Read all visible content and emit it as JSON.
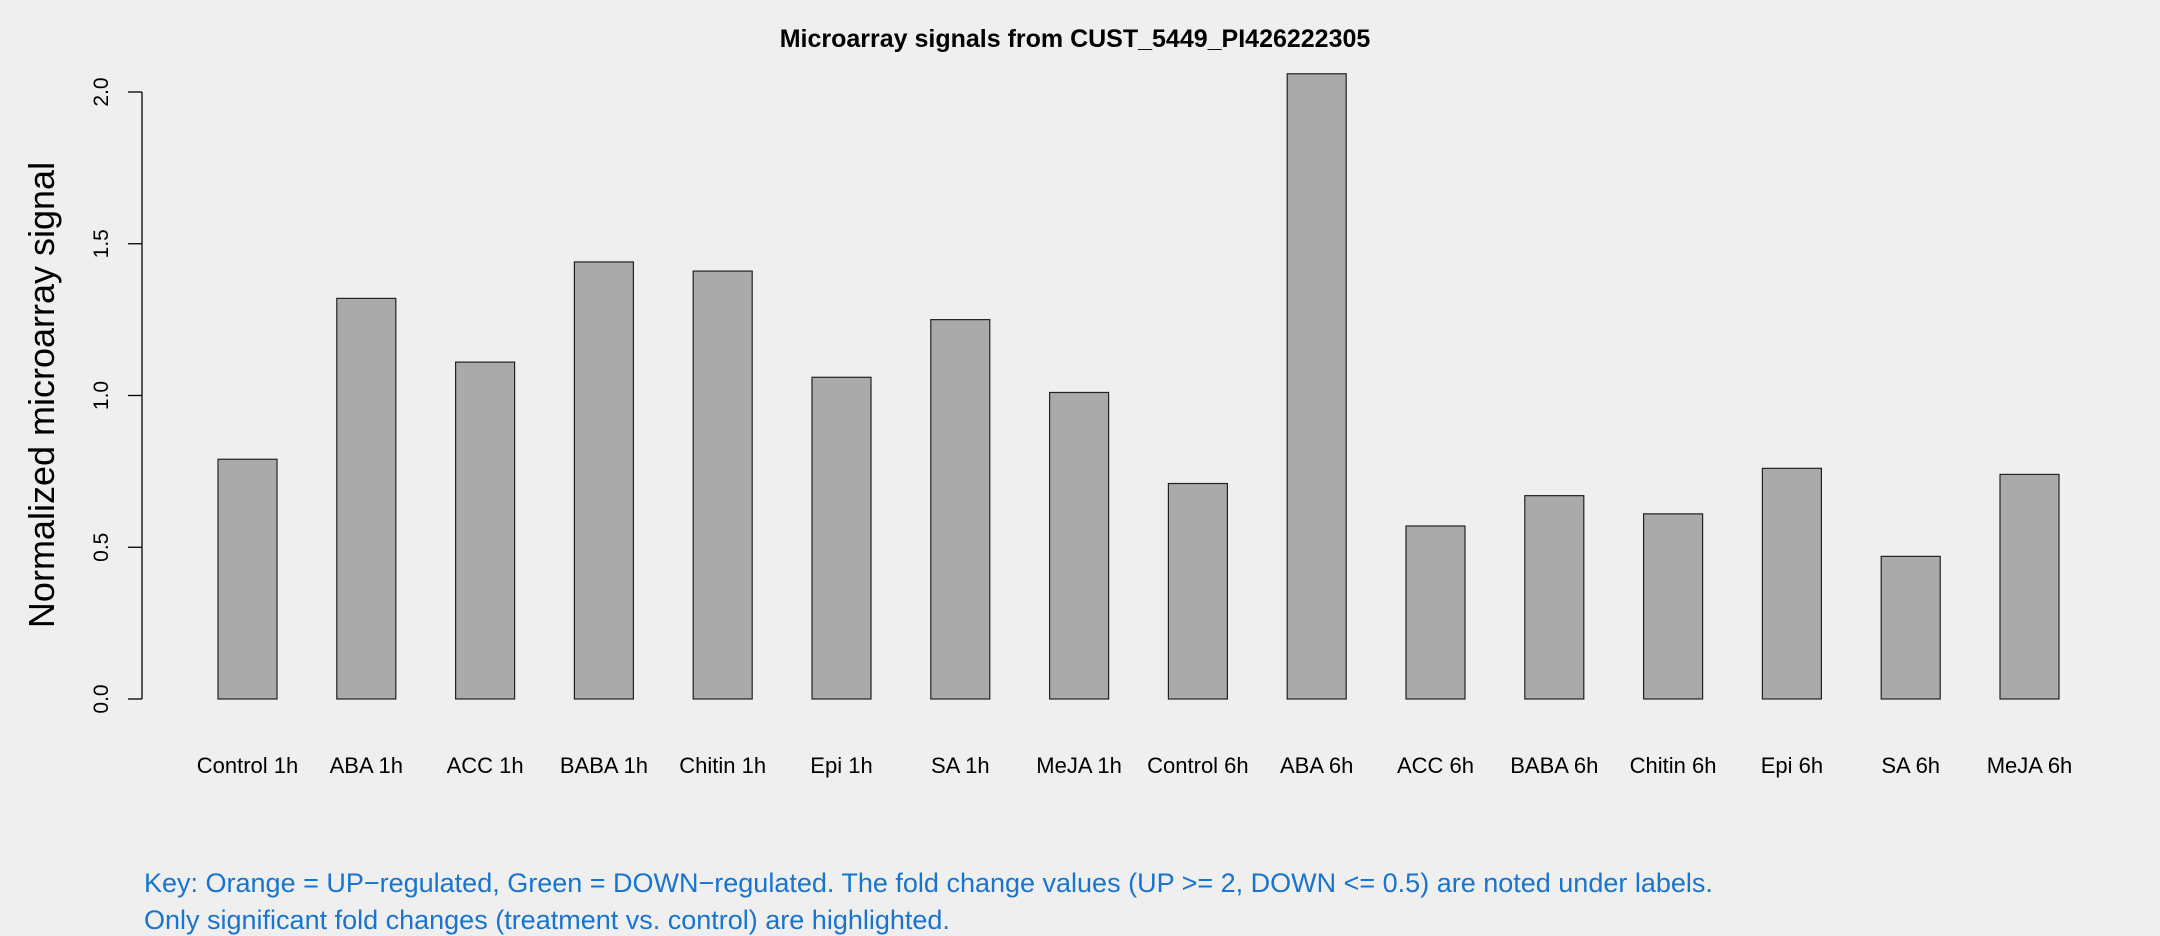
{
  "chart_data": {
    "type": "bar",
    "title": "Microarray signals from CUST_5449_PI426222305",
    "xlabel": "",
    "ylabel": "Normalized microarray signal",
    "ylim": [
      0,
      2.0
    ],
    "yticks": [
      "0.0",
      "0.5",
      "1.0",
      "1.5",
      "2.0"
    ],
    "ytick_values": [
      0,
      0.5,
      1.0,
      1.5,
      2.0
    ],
    "grid": false,
    "bar_color": "#aaaaaa",
    "categories": [
      "Control 1h",
      "ABA 1h",
      "ACC 1h",
      "BABA 1h",
      "Chitin 1h",
      "Epi 1h",
      "SA 1h",
      "MeJA 1h",
      "Control 6h",
      "ABA 6h",
      "ACC 6h",
      "BABA 6h",
      "Chitin 6h",
      "Epi 6h",
      "SA 6h",
      "MeJA 6h"
    ],
    "values": [
      0.79,
      1.32,
      1.11,
      1.44,
      1.41,
      1.06,
      1.25,
      1.01,
      0.71,
      2.06,
      0.57,
      0.67,
      0.61,
      0.76,
      0.47,
      0.74
    ]
  },
  "key": {
    "line1": "Key: Orange = UP−regulated, Green = DOWN−regulated. The fold change values (UP >= 2, DOWN <= 0.5) are noted under labels.",
    "line2": "Only significant fold changes (treatment vs. control) are highlighted.",
    "color": "#1874CD"
  }
}
